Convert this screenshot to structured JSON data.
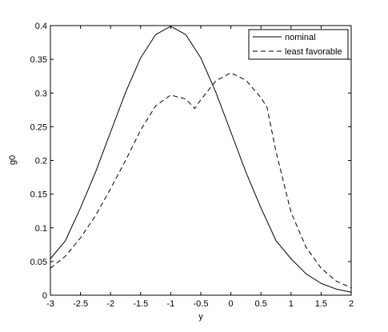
{
  "chart_data": {
    "type": "line",
    "title": "",
    "xlabel": "y",
    "ylabel": "g0",
    "xlim": [
      -3,
      2
    ],
    "ylim": [
      0,
      0.4
    ],
    "x_ticks": [
      -3,
      -2.5,
      -2,
      -1.5,
      -1,
      -0.5,
      0,
      0.5,
      1,
      1.5,
      2
    ],
    "x_tick_labels": [
      "-3",
      "-2.5",
      "-2",
      "-1.5",
      "-1",
      "-0.5",
      "0",
      "0.5",
      "1",
      "1.5",
      "2"
    ],
    "y_ticks": [
      0,
      0.05,
      0.1,
      0.15,
      0.2,
      0.25,
      0.3,
      0.35,
      0.4
    ],
    "y_tick_labels": [
      "0",
      "0.05",
      "0.1",
      "0.15",
      "0.2",
      "0.25",
      "0.3",
      "0.35",
      "0.4"
    ],
    "grid": false,
    "legend_position": "top-right",
    "series": [
      {
        "name": "nominal",
        "line_style": "solid",
        "color": "#000000",
        "x": [
          -3,
          -2.75,
          -2.5,
          -2.25,
          -2,
          -1.75,
          -1.5,
          -1.25,
          -1,
          -0.75,
          -0.5,
          -0.25,
          0,
          0.25,
          0.5,
          0.75,
          1,
          1.25,
          1.5,
          1.75,
          2
        ],
        "y": [
          0.054,
          0.081,
          0.1295,
          0.1826,
          0.242,
          0.3011,
          0.3521,
          0.3867,
          0.3989,
          0.3867,
          0.3521,
          0.3011,
          0.242,
          0.1826,
          0.1295,
          0.081,
          0.054,
          0.0317,
          0.0175,
          0.0091,
          0.0044
        ]
      },
      {
        "name": "least favorable",
        "line_style": "dashed",
        "color": "#000000",
        "x": [
          -3,
          -2.75,
          -2.5,
          -2.25,
          -2,
          -1.75,
          -1.5,
          -1.25,
          -1,
          -0.75,
          -0.6,
          -0.5,
          -0.25,
          0,
          0.25,
          0.5,
          0.6,
          0.75,
          1,
          1.25,
          1.5,
          1.75,
          2
        ],
        "y": [
          0.04,
          0.058,
          0.085,
          0.118,
          0.158,
          0.2,
          0.245,
          0.281,
          0.297,
          0.291,
          0.277,
          0.29,
          0.318,
          0.33,
          0.319,
          0.293,
          0.279,
          0.213,
          0.123,
          0.071,
          0.04,
          0.021,
          0.011
        ]
      }
    ]
  }
}
